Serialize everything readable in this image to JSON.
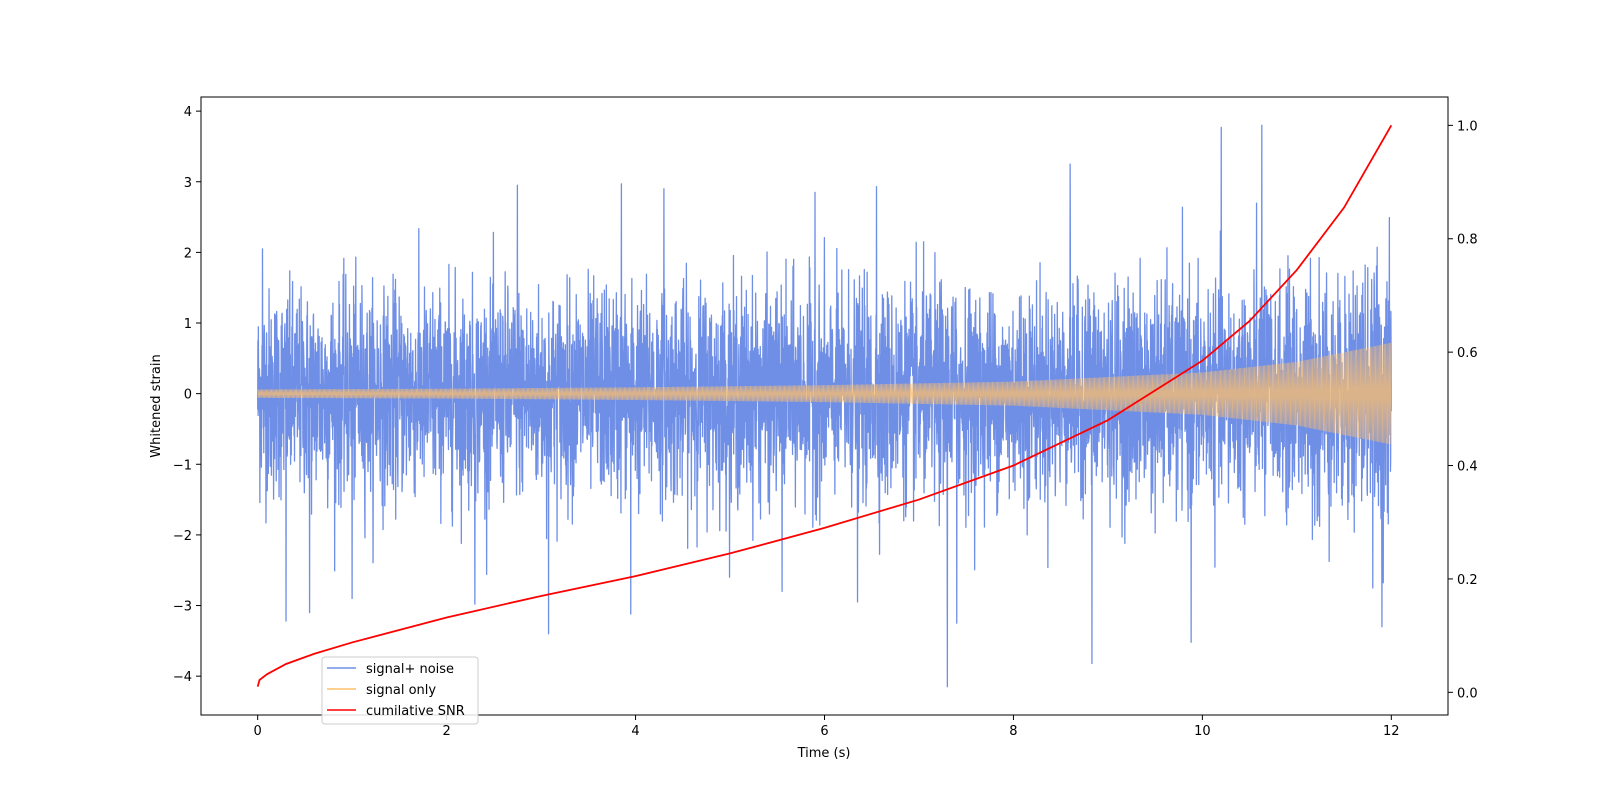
{
  "chart_data": {
    "type": "line",
    "title": "",
    "xlabel": "Time (s)",
    "ylabel": "Whitened strain",
    "y2label": "",
    "xlim": [
      -0.6,
      12.6
    ],
    "ylim": [
      -4.55,
      4.2
    ],
    "y2lim": [
      -0.04,
      1.05
    ],
    "xticks": [
      0,
      2,
      4,
      6,
      8,
      10,
      12
    ],
    "xtick_labels": [
      "0",
      "2",
      "4",
      "6",
      "8",
      "10",
      "12"
    ],
    "yticks": [
      -4,
      -3,
      -2,
      -1,
      0,
      1,
      2,
      3,
      4
    ],
    "ytick_labels": [
      "−4",
      "−3",
      "−2",
      "−1",
      "0",
      "1",
      "2",
      "3",
      "4"
    ],
    "y2ticks": [
      0.0,
      0.2,
      0.4,
      0.6,
      0.8,
      1.0
    ],
    "y2tick_labels": [
      "0.0",
      "0.2",
      "0.4",
      "0.6",
      "0.8",
      "1.0"
    ],
    "grid": false,
    "legend_position": "lower-left",
    "series": [
      {
        "name": "signal+ noise",
        "axis": "left",
        "color": "#6f8fe6",
        "description_range": [
          -4.15,
          3.8
        ],
        "typical_envelope": [
          -2.0,
          2.0
        ],
        "spikes": [
          {
            "x": 0.05,
            "y": 2.05
          },
          {
            "x": 0.3,
            "y": -3.22
          },
          {
            "x": 0.55,
            "y": -3.1
          },
          {
            "x": 1.0,
            "y": -2.9
          },
          {
            "x": 2.3,
            "y": -2.98
          },
          {
            "x": 2.75,
            "y": 2.95
          },
          {
            "x": 3.08,
            "y": -3.4
          },
          {
            "x": 3.85,
            "y": 2.97
          },
          {
            "x": 3.95,
            "y": -3.12
          },
          {
            "x": 4.3,
            "y": 2.9
          },
          {
            "x": 5.55,
            "y": -2.8
          },
          {
            "x": 5.9,
            "y": 2.85
          },
          {
            "x": 6.35,
            "y": -2.95
          },
          {
            "x": 6.55,
            "y": 2.93
          },
          {
            "x": 7.3,
            "y": -4.15
          },
          {
            "x": 7.4,
            "y": -3.25
          },
          {
            "x": 8.6,
            "y": 3.25
          },
          {
            "x": 8.83,
            "y": -3.82
          },
          {
            "x": 9.88,
            "y": -3.52
          },
          {
            "x": 10.2,
            "y": 3.77
          },
          {
            "x": 10.63,
            "y": 3.8
          },
          {
            "x": 11.9,
            "y": -3.3
          }
        ]
      },
      {
        "name": "signal only",
        "axis": "left",
        "color": "#ffbf6b",
        "envelope_x": [
          0,
          2,
          4,
          6,
          8,
          10,
          11,
          12
        ],
        "envelope_y": [
          0.06,
          0.07,
          0.09,
          0.12,
          0.17,
          0.3,
          0.45,
          0.72
        ]
      },
      {
        "name": "cumilative SNR",
        "axis": "right",
        "color": "#ff0000",
        "x": [
          0,
          0.02,
          0.1,
          0.3,
          0.6,
          1,
          2,
          3,
          4,
          5,
          6,
          7,
          8,
          9,
          10,
          10.5,
          11,
          11.5,
          12
        ],
        "y": [
          0.01,
          0.022,
          0.032,
          0.05,
          0.068,
          0.088,
          0.132,
          0.17,
          0.205,
          0.245,
          0.29,
          0.34,
          0.4,
          0.48,
          0.585,
          0.655,
          0.745,
          0.855,
          1.0
        ]
      }
    ]
  }
}
